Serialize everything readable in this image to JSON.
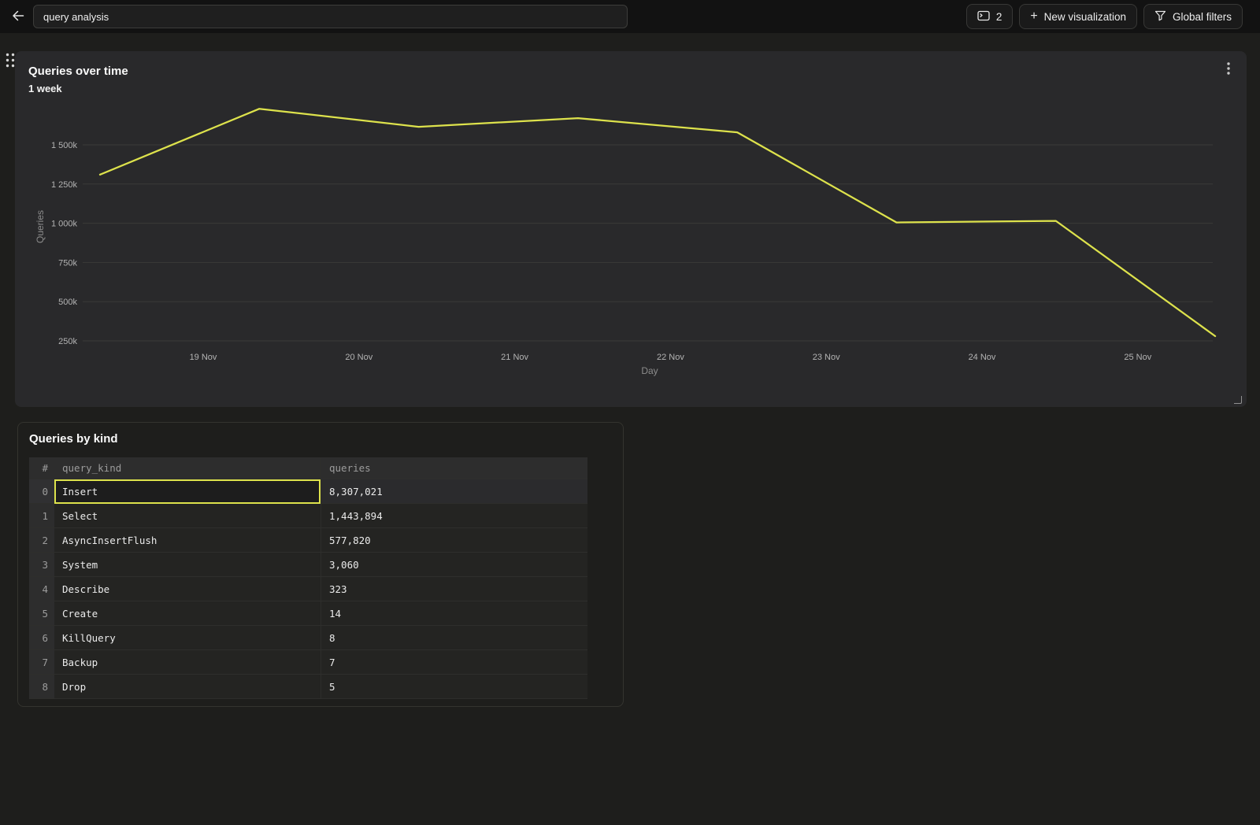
{
  "topbar": {
    "dashboard_name_input": {
      "value": "query analysis"
    },
    "visualizations_count_button": {
      "count": "2"
    },
    "new_visualization_button": {
      "label": "New visualization"
    },
    "global_filters_button": {
      "label": "Global filters"
    }
  },
  "chart_panel": {
    "title": "Queries over time",
    "subtitle": "1 week"
  },
  "chart_data": {
    "type": "line",
    "title": "Queries over time",
    "subtitle": "1 week",
    "xlabel": "Day",
    "ylabel": "Queries",
    "x_tick_labels": [
      "19 Nov",
      "20 Nov",
      "21 Nov",
      "22 Nov",
      "23 Nov",
      "24 Nov",
      "25 Nov"
    ],
    "y_ticks": [
      {
        "value": 250000,
        "label": "250k"
      },
      {
        "value": 500000,
        "label": "500k"
      },
      {
        "value": 750000,
        "label": "750k"
      },
      {
        "value": 1000000,
        "label": "1 000k"
      },
      {
        "value": 1250000,
        "label": "1 250k"
      },
      {
        "value": 1500000,
        "label": "1 500k"
      }
    ],
    "series": [
      {
        "name": "Queries",
        "approx_daily_values": [
          1310000,
          1730000,
          1615000,
          1670000,
          1580000,
          1005000,
          1015000,
          280000
        ]
      }
    ],
    "ylim_approx": [
      200000,
      1780000
    ],
    "grid": true,
    "legend": false,
    "line_color": "#dde24c"
  },
  "table_panel": {
    "title": "Queries by kind",
    "columns": [
      "#",
      "query_kind",
      "queries"
    ],
    "rows": [
      {
        "index": "0",
        "query_kind": "Insert",
        "queries": "8,307,021",
        "selected_cell": "query_kind",
        "active": true
      },
      {
        "index": "1",
        "query_kind": "Select",
        "queries": "1,443,894"
      },
      {
        "index": "2",
        "query_kind": "AsyncInsertFlush",
        "queries": "577,820"
      },
      {
        "index": "3",
        "query_kind": "System",
        "queries": "3,060"
      },
      {
        "index": "4",
        "query_kind": "Describe",
        "queries": "323"
      },
      {
        "index": "5",
        "query_kind": "Create",
        "queries": "14"
      },
      {
        "index": "6",
        "query_kind": "KillQuery",
        "queries": "8"
      },
      {
        "index": "7",
        "query_kind": "Backup",
        "queries": "7"
      },
      {
        "index": "8",
        "query_kind": "Drop",
        "queries": "5"
      }
    ]
  }
}
